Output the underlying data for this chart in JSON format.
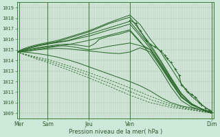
{
  "xlabel": "Pression niveau de la mer( hPa )",
  "bg_color": "#cce8d8",
  "line_color": "#2d6a2d",
  "ylim": [
    1008.5,
    1019.5
  ],
  "yticks": [
    1009,
    1010,
    1011,
    1012,
    1013,
    1014,
    1015,
    1016,
    1017,
    1018,
    1019
  ],
  "xlim": [
    0,
    9.6
  ],
  "xtick_positions": [
    0.1,
    1.5,
    3.5,
    5.5,
    9.5
  ],
  "xtick_labels": [
    "Mer",
    "Sam",
    "Jeu",
    "Ven",
    "Dim"
  ],
  "vline_positions": [
    0.1,
    1.5,
    3.5,
    5.5,
    9.5
  ],
  "n_vgrid": 95,
  "lines": [
    [
      0.0,
      1014.8,
      0.3,
      1015.1,
      0.6,
      1015.3,
      1.0,
      1015.5,
      1.5,
      1015.7,
      2.0,
      1015.9,
      2.5,
      1016.2,
      3.0,
      1016.5,
      3.5,
      1016.8,
      4.0,
      1017.2,
      4.5,
      1017.6,
      5.0,
      1017.95,
      5.5,
      1018.3,
      6.0,
      1017.4,
      6.5,
      1016.0,
      7.0,
      1014.8,
      7.5,
      1013.3,
      8.0,
      1011.8,
      8.5,
      1010.6,
      9.0,
      1009.8,
      9.5,
      1009.1
    ],
    [
      0.0,
      1014.8,
      0.3,
      1015.0,
      0.6,
      1015.2,
      1.0,
      1015.4,
      1.5,
      1015.6,
      2.0,
      1015.8,
      2.5,
      1016.1,
      3.0,
      1016.4,
      3.5,
      1016.7,
      4.0,
      1017.1,
      4.5,
      1017.5,
      5.0,
      1017.8,
      5.5,
      1018.1,
      6.0,
      1016.8,
      6.5,
      1015.5,
      7.0,
      1014.0,
      7.5,
      1012.4,
      8.0,
      1010.9,
      8.5,
      1009.9,
      9.0,
      1009.4,
      9.5,
      1009.0
    ],
    [
      0.0,
      1014.8,
      0.3,
      1015.0,
      0.6,
      1015.2,
      1.0,
      1015.4,
      1.5,
      1015.6,
      2.0,
      1015.75,
      2.5,
      1015.9,
      3.0,
      1016.2,
      3.5,
      1016.5,
      4.0,
      1016.8,
      4.5,
      1017.1,
      5.0,
      1017.4,
      5.5,
      1017.7,
      6.0,
      1016.5,
      6.5,
      1015.3,
      7.0,
      1013.9,
      7.5,
      1012.3,
      8.0,
      1010.8,
      8.5,
      1009.9,
      9.0,
      1009.4,
      9.5,
      1009.1
    ],
    [
      0.0,
      1014.8,
      0.3,
      1015.0,
      0.6,
      1015.15,
      1.0,
      1015.35,
      1.5,
      1015.55,
      2.0,
      1015.7,
      2.5,
      1015.85,
      3.0,
      1016.1,
      3.5,
      1016.3,
      4.0,
      1016.6,
      4.5,
      1016.9,
      5.0,
      1017.15,
      5.5,
      1017.45,
      6.0,
      1016.3,
      6.5,
      1015.1,
      7.0,
      1013.7,
      7.5,
      1012.2,
      8.0,
      1010.8,
      8.5,
      1009.9,
      9.0,
      1009.4,
      9.5,
      1009.0
    ],
    [
      0.0,
      1014.8,
      0.3,
      1014.95,
      0.6,
      1015.05,
      1.0,
      1015.2,
      1.5,
      1015.35,
      2.0,
      1015.5,
      2.5,
      1015.55,
      3.0,
      1015.45,
      3.5,
      1015.3,
      3.8,
      1015.6,
      4.0,
      1016.0,
      4.5,
      1016.3,
      5.0,
      1016.5,
      5.5,
      1016.8,
      6.0,
      1015.7,
      6.2,
      1015.35,
      6.5,
      1015.0,
      7.0,
      1013.5,
      7.5,
      1012.0,
      8.0,
      1010.6,
      8.5,
      1009.8,
      9.0,
      1009.4,
      9.5,
      1009.0
    ],
    [
      0.0,
      1014.8,
      0.3,
      1014.9,
      0.6,
      1015.0,
      1.0,
      1015.15,
      1.5,
      1015.3,
      2.0,
      1015.4,
      2.5,
      1015.35,
      3.0,
      1015.2,
      3.5,
      1015.0,
      4.0,
      1015.15,
      4.5,
      1015.35,
      5.0,
      1015.5,
      5.5,
      1015.65,
      6.0,
      1015.4,
      6.5,
      1015.0,
      7.0,
      1013.6,
      7.5,
      1012.1,
      8.0,
      1010.6,
      8.5,
      1009.8,
      9.0,
      1009.4,
      9.5,
      1009.1
    ],
    [
      0.0,
      1014.8,
      0.3,
      1014.85,
      0.6,
      1014.9,
      1.0,
      1015.0,
      1.5,
      1015.1,
      2.0,
      1015.15,
      2.5,
      1015.1,
      3.0,
      1015.0,
      3.5,
      1014.9,
      4.0,
      1014.8,
      4.5,
      1014.7,
      5.0,
      1014.65,
      5.5,
      1014.8,
      6.0,
      1015.2,
      6.5,
      1014.8,
      7.0,
      1013.4,
      7.5,
      1011.9,
      8.0,
      1010.5,
      8.5,
      1009.8,
      9.0,
      1009.4,
      9.5,
      1009.1
    ],
    [
      0.0,
      1014.8,
      0.3,
      1014.8,
      0.6,
      1014.75,
      1.0,
      1014.65,
      1.5,
      1014.5,
      2.0,
      1014.3,
      2.5,
      1014.05,
      3.0,
      1013.75,
      3.5,
      1013.4,
      4.0,
      1013.05,
      4.5,
      1012.7,
      5.0,
      1012.35,
      5.5,
      1012.0,
      6.0,
      1011.6,
      6.5,
      1011.1,
      7.0,
      1010.5,
      7.5,
      1010.0,
      8.0,
      1009.7,
      8.5,
      1009.5,
      9.0,
      1009.3,
      9.5,
      1009.1
    ],
    [
      0.0,
      1014.8,
      0.3,
      1014.85,
      0.6,
      1014.9,
      1.0,
      1015.05,
      1.5,
      1015.2,
      2.0,
      1015.35,
      2.5,
      1015.5,
      3.0,
      1015.7,
      3.5,
      1015.9,
      4.0,
      1016.15,
      4.5,
      1016.4,
      5.0,
      1016.65,
      5.5,
      1016.9,
      6.0,
      1015.8,
      6.5,
      1014.5,
      7.0,
      1013.1,
      7.5,
      1011.5,
      8.0,
      1010.2,
      8.5,
      1009.6,
      9.0,
      1009.3,
      9.5,
      1009.0
    ]
  ],
  "dotted_lines": [
    [
      0.0,
      1014.8,
      0.5,
      1014.55,
      1.0,
      1014.3,
      1.5,
      1014.1,
      2.5,
      1013.5,
      3.5,
      1012.85,
      4.5,
      1012.15,
      5.5,
      1011.4,
      6.5,
      1010.6,
      7.5,
      1009.85,
      8.5,
      1009.4,
      9.5,
      1009.0
    ],
    [
      0.0,
      1014.8,
      0.5,
      1014.5,
      1.0,
      1014.2,
      1.5,
      1013.95,
      2.5,
      1013.3,
      3.5,
      1012.6,
      4.5,
      1011.85,
      5.5,
      1011.05,
      6.5,
      1010.3,
      7.5,
      1009.7,
      8.5,
      1009.35,
      9.5,
      1009.0
    ],
    [
      0.0,
      1014.8,
      0.5,
      1014.45,
      1.0,
      1014.1,
      1.5,
      1013.8,
      2.5,
      1013.1,
      3.5,
      1012.35,
      4.5,
      1011.55,
      5.5,
      1010.7,
      6.5,
      1010.0,
      7.5,
      1009.55,
      8.5,
      1009.3,
      9.5,
      1009.0
    ]
  ],
  "marker_line": [
    5.5,
    1017.8,
    5.8,
    1017.5,
    6.0,
    1016.8,
    6.3,
    1015.9,
    6.5,
    1015.5,
    6.7,
    1015.3,
    7.0,
    1014.9,
    7.2,
    1014.5,
    7.3,
    1014.2,
    7.5,
    1013.8,
    7.7,
    1013.2,
    7.9,
    1012.6,
    8.0,
    1011.7,
    8.2,
    1011.3,
    8.3,
    1011.0,
    8.5,
    1010.8,
    8.7,
    1010.5,
    8.9,
    1010.0,
    9.0,
    1009.8,
    9.2,
    1009.5,
    9.4,
    1009.3,
    9.5,
    1009.1
  ]
}
